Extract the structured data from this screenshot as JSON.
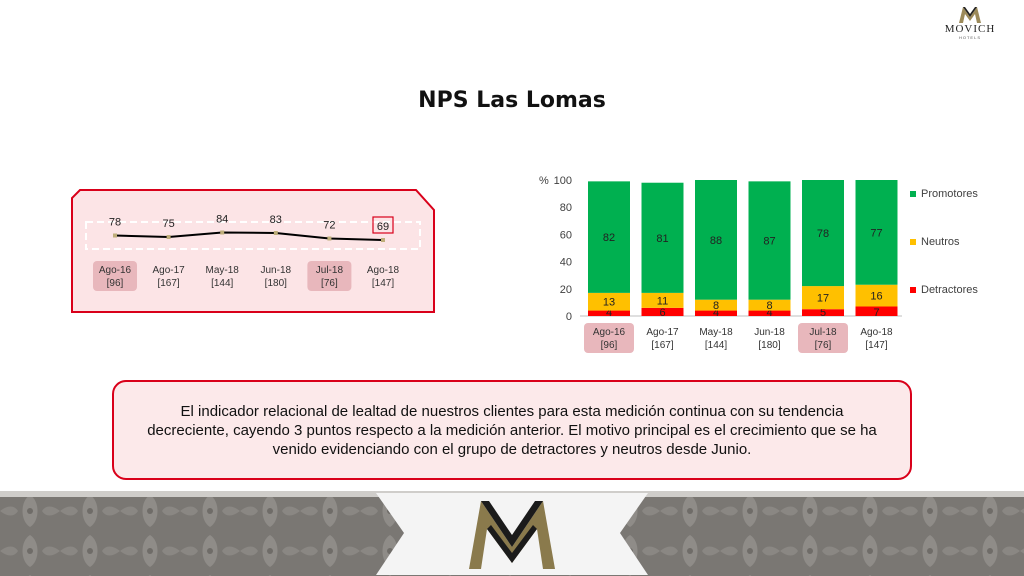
{
  "brand": {
    "name": "MOVICH",
    "subtitle": "HOTELS"
  },
  "title": "NPS Las Lomas",
  "nps_chart": {
    "type": "line",
    "categories": [
      "Ago-16",
      "Ago-17",
      "May-18",
      "Jun-18",
      "Jul-18",
      "Ago-18"
    ],
    "samples": [
      "[96]",
      "[167]",
      "[144]",
      "[180]",
      "[76]",
      "[147]"
    ],
    "values": [
      78,
      75,
      84,
      83,
      72,
      69
    ],
    "highlighted_categories": [
      "Ago-16",
      "Jul-18"
    ],
    "highlighted_value": "Ago-18",
    "colors": {
      "line": "#000000",
      "marker": "#bfae7a",
      "border": "#d9001a",
      "background": "#fce4e6",
      "highlight": "#e8b7bc"
    }
  },
  "composition_chart": {
    "type": "bar",
    "stacked": true,
    "categories": [
      "Ago-16",
      "Ago-17",
      "May-18",
      "Jun-18",
      "Jul-18",
      "Ago-18"
    ],
    "samples": [
      "[96]",
      "[167]",
      "[144]",
      "[180]",
      "[76]",
      "[147]"
    ],
    "highlighted_categories": [
      "Ago-16",
      "Jul-18"
    ],
    "ylim": [
      0,
      100
    ],
    "yticks": [
      "0",
      "20",
      "40",
      "60",
      "80",
      "100"
    ],
    "y_unit": "%",
    "legend_position": "right",
    "series": [
      {
        "name": "Detractores",
        "values": [
          4,
          6,
          4,
          4,
          5,
          7
        ],
        "color": "#ff0000"
      },
      {
        "name": "Neutros",
        "values": [
          13,
          11,
          8,
          8,
          17,
          16
        ],
        "color": "#ffc000"
      },
      {
        "name": "Promotores",
        "values": [
          82,
          81,
          88,
          87,
          78,
          77
        ],
        "color": "#00b050"
      }
    ]
  },
  "message": "El indicador relacional de lealtad de nuestros clientes para esta medición continua con su tendencia decreciente, cayendo 3 puntos respecto a la medición anterior. El motivo principal es el crecimiento que se ha venido evidenciando con el grupo de detractores y neutros desde Junio."
}
